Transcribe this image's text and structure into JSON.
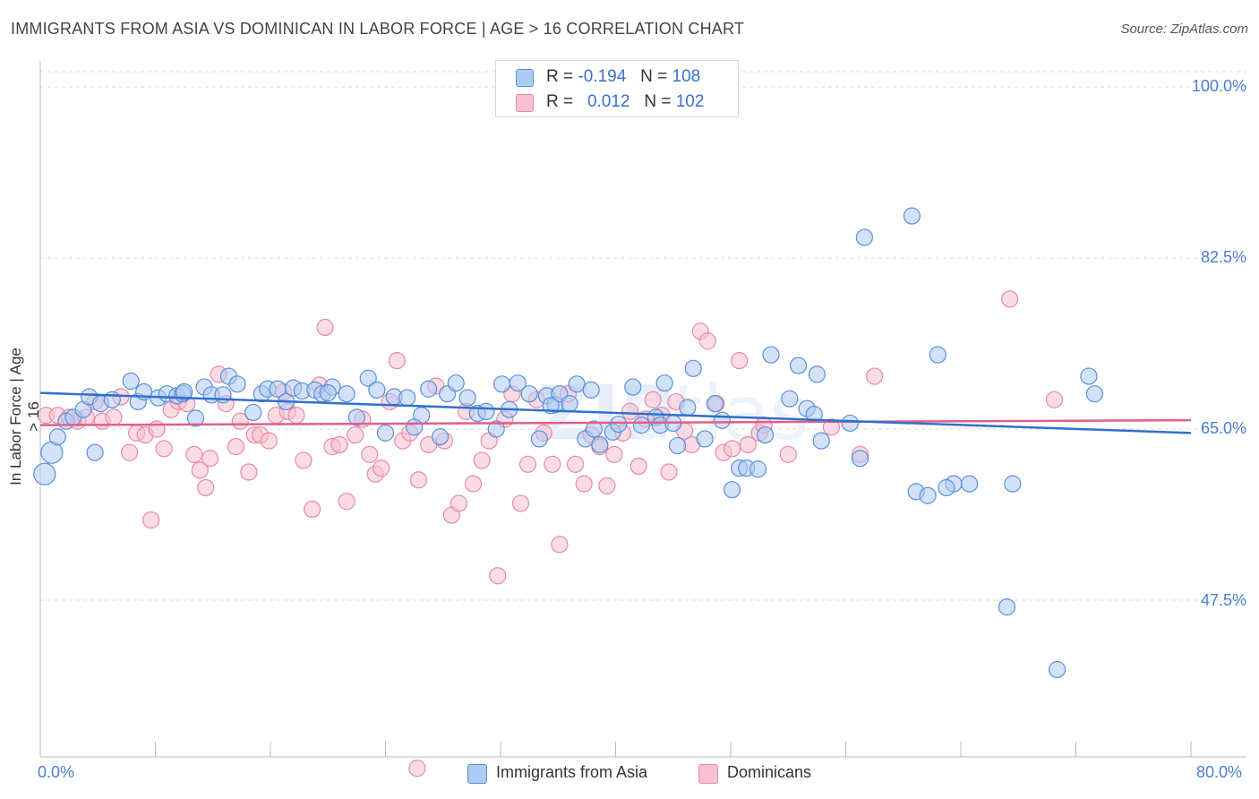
{
  "header": {
    "title": "IMMIGRANTS FROM ASIA VS DOMINICAN IN LABOR FORCE | AGE > 16 CORRELATION CHART",
    "source": "Source: ZipAtlas.com"
  },
  "legend": {
    "rows": [
      {
        "r_label": "R =",
        "r_value": "-0.194",
        "n_label": "N =",
        "n_value": "108",
        "color": "#aecbf4"
      },
      {
        "r_label": "R =",
        "r_value": "0.012",
        "n_label": "N =",
        "n_value": "102",
        "color": "#f8c0d0"
      }
    ]
  },
  "bottom_legend": [
    {
      "label": "Immigrants from Asia",
      "color": "#aecbf4"
    },
    {
      "label": "Dominicans",
      "color": "#f8c0d0"
    }
  ],
  "chart_data": {
    "type": "scatter",
    "title": "IMMIGRANTS FROM ASIA VS DOMINICAN IN LABOR FORCE | AGE > 16 CORRELATION CHART",
    "xlabel": "",
    "ylabel": "In Labor Force | Age > 16",
    "xlim": [
      0,
      80
    ],
    "ylim": [
      30,
      101.5
    ],
    "x_tick_labels": [
      "0.0%",
      "80.0%"
    ],
    "y_ticks": [
      47.5,
      65.0,
      82.5,
      100.0
    ],
    "y_tick_labels": [
      "47.5%",
      "65.0%",
      "82.5%",
      "100.0%"
    ],
    "grid": true,
    "colors": {
      "asia_fill": "#aecbf4",
      "asia_stroke": "#5b8fd8",
      "asia_line": "#3070d0",
      "dom_fill": "#f8c0d0",
      "dom_stroke": "#e68aa6",
      "dom_line": "#e0608a",
      "tick_text": "#4a7fd0"
    },
    "series": [
      {
        "name": "Immigrants from Asia",
        "trend": {
          "x": [
            0,
            80
          ],
          "y": [
            68.7,
            64.6
          ]
        },
        "points": [
          [
            0.3,
            60.4
          ],
          [
            0.8,
            62.6
          ],
          [
            1.2,
            64.2
          ],
          [
            1.8,
            65.8
          ],
          [
            2.3,
            66.2
          ],
          [
            3.0,
            67.0
          ],
          [
            3.4,
            68.3
          ],
          [
            4.2,
            67.6
          ],
          [
            5.0,
            68.0
          ],
          [
            6.3,
            69.9
          ],
          [
            6.8,
            67.8
          ],
          [
            7.2,
            68.8
          ],
          [
            8.2,
            68.2
          ],
          [
            8.8,
            68.6
          ],
          [
            9.5,
            68.4
          ],
          [
            9.9,
            68.6
          ],
          [
            10.8,
            66.1
          ],
          [
            11.4,
            69.3
          ],
          [
            11.9,
            68.5
          ],
          [
            12.7,
            68.5
          ],
          [
            13.1,
            70.4
          ],
          [
            13.7,
            69.6
          ],
          [
            14.8,
            66.7
          ],
          [
            15.4,
            68.6
          ],
          [
            15.8,
            69.1
          ],
          [
            16.5,
            69.1
          ],
          [
            17.1,
            67.8
          ],
          [
            17.6,
            69.2
          ],
          [
            18.2,
            68.9
          ],
          [
            19.1,
            69.0
          ],
          [
            19.6,
            68.6
          ],
          [
            20.3,
            69.3
          ],
          [
            21.3,
            68.6
          ],
          [
            22.0,
            66.2
          ],
          [
            22.8,
            70.2
          ],
          [
            23.4,
            69.0
          ],
          [
            24.0,
            64.6
          ],
          [
            24.6,
            68.3
          ],
          [
            25.5,
            68.2
          ],
          [
            26.5,
            66.4
          ],
          [
            27.0,
            69.1
          ],
          [
            27.8,
            64.2
          ],
          [
            28.3,
            68.6
          ],
          [
            28.9,
            69.7
          ],
          [
            29.7,
            68.2
          ],
          [
            30.4,
            66.6
          ],
          [
            31.0,
            66.8
          ],
          [
            31.7,
            65.0
          ],
          [
            32.1,
            69.6
          ],
          [
            32.6,
            67.0
          ],
          [
            33.2,
            69.7
          ],
          [
            34.0,
            68.6
          ],
          [
            34.7,
            64.0
          ],
          [
            35.2,
            68.4
          ],
          [
            35.8,
            67.5
          ],
          [
            36.1,
            68.6
          ],
          [
            36.8,
            67.6
          ],
          [
            37.3,
            69.6
          ],
          [
            37.9,
            64.0
          ],
          [
            38.3,
            69.0
          ],
          [
            38.5,
            65.0
          ],
          [
            38.9,
            63.4
          ],
          [
            39.8,
            64.7
          ],
          [
            40.2,
            65.5
          ],
          [
            41.2,
            69.3
          ],
          [
            41.8,
            65.4
          ],
          [
            42.8,
            66.2
          ],
          [
            43.1,
            65.4
          ],
          [
            43.4,
            69.7
          ],
          [
            44.3,
            63.3
          ],
          [
            45.0,
            67.2
          ],
          [
            45.4,
            71.2
          ],
          [
            46.2,
            64.0
          ],
          [
            46.9,
            67.6
          ],
          [
            47.4,
            65.9
          ],
          [
            48.1,
            58.8
          ],
          [
            48.6,
            61.0
          ],
          [
            49.1,
            61.0
          ],
          [
            49.9,
            60.9
          ],
          [
            50.4,
            64.4
          ],
          [
            50.8,
            72.6
          ],
          [
            52.1,
            68.1
          ],
          [
            52.7,
            71.5
          ],
          [
            53.3,
            67.1
          ],
          [
            53.8,
            66.5
          ],
          [
            54.3,
            63.8
          ],
          [
            56.3,
            65.6
          ],
          [
            57.3,
            84.6
          ],
          [
            60.6,
            86.8
          ],
          [
            60.9,
            58.6
          ],
          [
            61.7,
            58.2
          ],
          [
            62.4,
            72.6
          ],
          [
            63.5,
            59.4
          ],
          [
            64.6,
            59.4
          ],
          [
            67.2,
            46.8
          ],
          [
            70.7,
            40.4
          ],
          [
            67.6,
            59.4
          ],
          [
            72.9,
            70.4
          ],
          [
            73.3,
            68.6
          ],
          [
            57.0,
            62.0
          ],
          [
            63.0,
            59.0
          ],
          [
            26.0,
            65.2
          ],
          [
            44.0,
            65.6
          ],
          [
            35.5,
            67.4
          ],
          [
            54.0,
            70.6
          ],
          [
            20.0,
            68.7
          ],
          [
            10.0,
            68.8
          ],
          [
            3.8,
            62.6
          ]
        ]
      },
      {
        "name": "Dominicans",
        "trend": {
          "x": [
            0,
            80
          ],
          "y": [
            65.4,
            65.9
          ]
        },
        "points": [
          [
            0.4,
            66.4
          ],
          [
            1.2,
            66.4
          ],
          [
            2.0,
            66.2
          ],
          [
            2.6,
            65.8
          ],
          [
            3.2,
            66.2
          ],
          [
            3.8,
            67.8
          ],
          [
            4.3,
            65.8
          ],
          [
            5.1,
            66.2
          ],
          [
            5.6,
            68.3
          ],
          [
            6.2,
            62.6
          ],
          [
            6.7,
            64.6
          ],
          [
            7.3,
            64.4
          ],
          [
            7.7,
            55.7
          ],
          [
            8.1,
            65.0
          ],
          [
            8.6,
            63.0
          ],
          [
            9.1,
            67.0
          ],
          [
            9.6,
            67.8
          ],
          [
            10.2,
            67.6
          ],
          [
            10.7,
            62.4
          ],
          [
            11.1,
            60.8
          ],
          [
            11.5,
            59.0
          ],
          [
            11.8,
            62.0
          ],
          [
            12.4,
            70.6
          ],
          [
            12.9,
            67.6
          ],
          [
            13.6,
            63.2
          ],
          [
            13.9,
            65.8
          ],
          [
            14.5,
            60.6
          ],
          [
            14.9,
            64.4
          ],
          [
            15.3,
            64.4
          ],
          [
            15.9,
            63.8
          ],
          [
            16.4,
            66.4
          ],
          [
            16.9,
            68.8
          ],
          [
            17.2,
            66.8
          ],
          [
            17.8,
            66.4
          ],
          [
            18.3,
            61.8
          ],
          [
            18.9,
            56.8
          ],
          [
            19.4,
            69.5
          ],
          [
            19.8,
            75.4
          ],
          [
            20.3,
            63.2
          ],
          [
            20.8,
            63.4
          ],
          [
            21.3,
            57.6
          ],
          [
            21.9,
            64.4
          ],
          [
            22.4,
            66.0
          ],
          [
            22.9,
            62.4
          ],
          [
            23.3,
            60.4
          ],
          [
            23.7,
            61.0
          ],
          [
            24.3,
            67.8
          ],
          [
            24.8,
            72.0
          ],
          [
            25.2,
            63.8
          ],
          [
            25.7,
            64.6
          ],
          [
            26.3,
            59.8
          ],
          [
            27.0,
            63.4
          ],
          [
            27.5,
            69.4
          ],
          [
            28.1,
            63.8
          ],
          [
            28.6,
            56.2
          ],
          [
            29.1,
            57.4
          ],
          [
            29.6,
            66.8
          ],
          [
            30.1,
            59.4
          ],
          [
            30.7,
            61.8
          ],
          [
            31.2,
            63.8
          ],
          [
            31.8,
            50.0
          ],
          [
            32.3,
            66.0
          ],
          [
            32.8,
            68.6
          ],
          [
            33.4,
            57.4
          ],
          [
            33.9,
            61.4
          ],
          [
            34.5,
            68.0
          ],
          [
            35.0,
            64.6
          ],
          [
            35.6,
            61.4
          ],
          [
            36.1,
            53.2
          ],
          [
            36.7,
            68.6
          ],
          [
            37.2,
            61.4
          ],
          [
            37.8,
            59.4
          ],
          [
            38.3,
            64.4
          ],
          [
            38.9,
            63.2
          ],
          [
            39.4,
            59.2
          ],
          [
            39.9,
            62.4
          ],
          [
            40.5,
            64.6
          ],
          [
            41.0,
            66.8
          ],
          [
            41.6,
            61.2
          ],
          [
            42.1,
            66.0
          ],
          [
            42.6,
            68.0
          ],
          [
            43.2,
            66.4
          ],
          [
            43.7,
            60.6
          ],
          [
            44.2,
            67.8
          ],
          [
            44.8,
            64.8
          ],
          [
            45.3,
            63.4
          ],
          [
            45.9,
            75.0
          ],
          [
            46.4,
            74.0
          ],
          [
            47.0,
            67.6
          ],
          [
            47.5,
            62.6
          ],
          [
            48.1,
            63.0
          ],
          [
            48.6,
            72.0
          ],
          [
            49.2,
            63.4
          ],
          [
            50.0,
            64.6
          ],
          [
            50.3,
            65.4
          ],
          [
            52.0,
            62.4
          ],
          [
            55.0,
            65.2
          ],
          [
            57.0,
            62.4
          ],
          [
            58.0,
            70.4
          ],
          [
            70.5,
            68.0
          ],
          [
            26.2,
            30.3
          ],
          [
            67.4,
            78.3
          ]
        ]
      }
    ]
  }
}
